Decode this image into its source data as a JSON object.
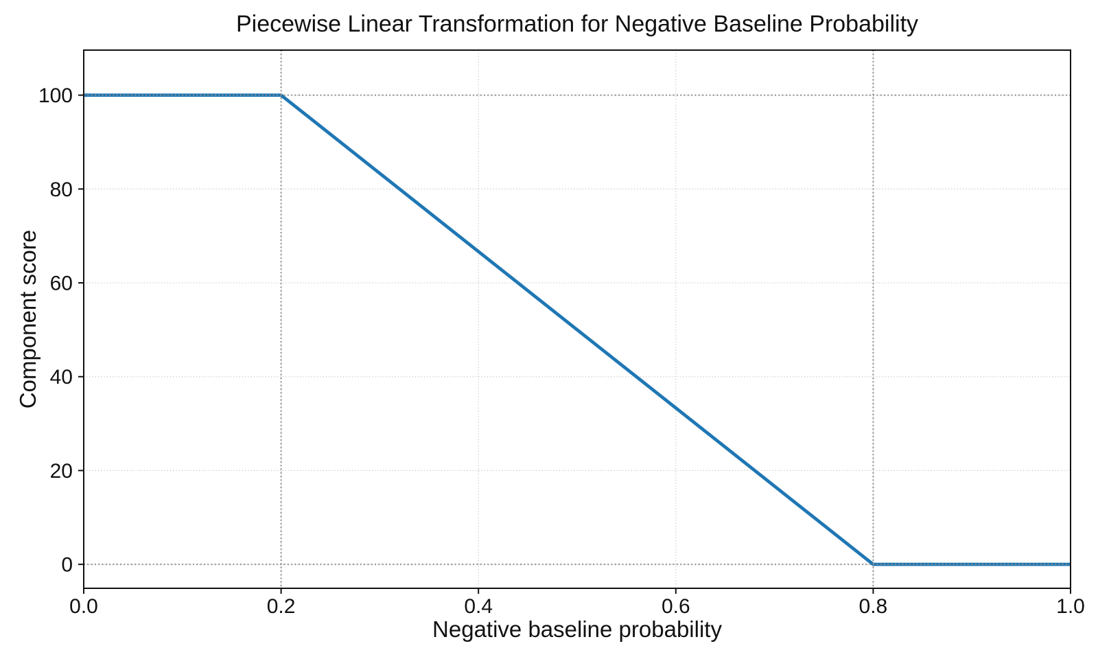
{
  "chart_data": {
    "type": "line",
    "title": "Piecewise Linear Transformation for Negative Baseline Probability",
    "xlabel": "Negative baseline probability",
    "ylabel": "Component score",
    "xlim": [
      0.0,
      1.0
    ],
    "ylim": [
      -5.1,
      109.6
    ],
    "x_ticks": [
      0.0,
      0.2,
      0.4,
      0.6,
      0.8,
      1.0
    ],
    "x_tick_labels": [
      "0.0",
      "0.2",
      "0.4",
      "0.6",
      "0.8",
      "1.0"
    ],
    "y_ticks": [
      0,
      20,
      40,
      60,
      80,
      100
    ],
    "y_tick_labels": [
      "0",
      "20",
      "40",
      "60",
      "80",
      "100"
    ],
    "grid": {
      "on": true,
      "style": "dotted",
      "color": "#c6c6c6"
    },
    "reference_lines": {
      "vertical_x": [
        0.2,
        0.8
      ],
      "horizontal_y": [
        0,
        100
      ],
      "style": "dotted",
      "color": "#8c8c8c"
    },
    "series": [
      {
        "name": "component_score",
        "x": [
          0.0,
          0.2,
          0.8,
          1.0
        ],
        "y": [
          100,
          100,
          0,
          0
        ],
        "color": "#1f77b4",
        "linewidth": 4.8
      }
    ],
    "legend": "none",
    "axis_color": "#111111"
  }
}
